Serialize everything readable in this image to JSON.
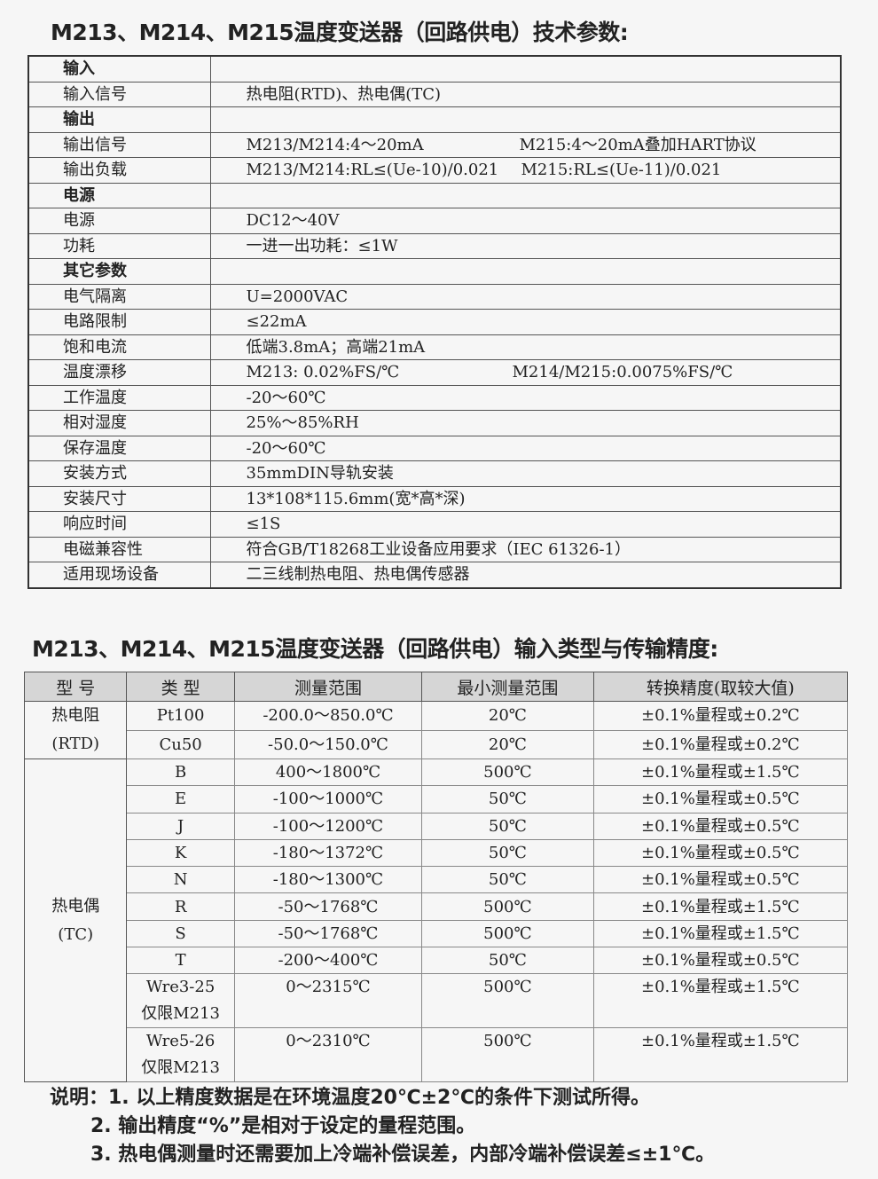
{
  "spec": {
    "title": "M213、M214、M215温度变送器（回路供电）技术参数:",
    "rows": [
      {
        "k": "输入",
        "bold": true,
        "v": "",
        "v2": ""
      },
      {
        "k": "输入信号",
        "v": "热电阻(RTD)、热电偶(TC)",
        "v2": ""
      },
      {
        "k": "输出",
        "bold": true,
        "v": "",
        "v2": ""
      },
      {
        "k": "输出信号",
        "v": "M213/M214:4～20mA",
        "v2": "M215:4～20mA叠加HART协议"
      },
      {
        "k": "输出负载",
        "v": "M213/M214:RL≤(Ue-10)/0.021",
        "v2": "M215:RL≤(Ue-11)/0.021"
      },
      {
        "k": "电源",
        "bold": true,
        "v": "",
        "v2": ""
      },
      {
        "k": "电源",
        "v": "DC12～40V",
        "v2": ""
      },
      {
        "k": "功耗",
        "v": "一进一出功耗：≤1W",
        "v2": ""
      },
      {
        "k": "其它参数",
        "bold": true,
        "v": "",
        "v2": ""
      },
      {
        "k": "电气隔离",
        "v": "U=2000VAC",
        "v2": ""
      },
      {
        "k": "电路限制",
        "v": "≤22mA",
        "v2": ""
      },
      {
        "k": "饱和电流",
        "v": "低端3.8mA；高端21mA",
        "v2": ""
      },
      {
        "k": "温度漂移",
        "v": "M213: 0.02%FS/℃",
        "v2": "M214/M215:0.0075%FS/℃"
      },
      {
        "k": "工作温度",
        "v": "-20～60℃",
        "v2": ""
      },
      {
        "k": "相对湿度",
        "v": "25%～85%RH",
        "v2": ""
      },
      {
        "k": "保存温度",
        "v": "-20～60℃",
        "v2": ""
      },
      {
        "k": "安装方式",
        "v": "35mmDIN导轨安装",
        "v2": ""
      },
      {
        "k": "安装尺寸",
        "v": "13*108*115.6mm(宽*高*深)",
        "v2": ""
      },
      {
        "k": "响应时间",
        "v": "≤1S",
        "v2": ""
      },
      {
        "k": "电磁兼容性",
        "v": "符合GB/T18268工业设备应用要求（IEC 61326-1）",
        "v2": ""
      },
      {
        "k": "适用现场设备",
        "v": "二三线制热电阻、热电偶传感器",
        "v2": ""
      }
    ]
  },
  "accuracy": {
    "title": "M213、M214、M215温度变送器（回路供电）输入类型与传输精度:",
    "headers": [
      "型 号",
      "类 型",
      "测量范围",
      "最小测量范围",
      "转换精度(取较大值)"
    ],
    "groups": [
      {
        "model": "热电阻\n(RTD)",
        "rows": [
          [
            "Pt100",
            "-200.0～850.0℃",
            "20℃",
            "±0.1%量程或±0.2℃"
          ],
          [
            "Cu50",
            "-50.0～150.0℃",
            "20℃",
            "±0.1%量程或±0.2℃"
          ]
        ]
      },
      {
        "model": "热电偶\n(TC)",
        "rows": [
          [
            "B",
            "400～1800℃",
            "500℃",
            "±0.1%量程或±1.5℃"
          ],
          [
            "E",
            "-100～1000℃",
            "50℃",
            "±0.1%量程或±0.5℃"
          ],
          [
            "J",
            "-100～1200℃",
            "50℃",
            "±0.1%量程或±0.5℃"
          ],
          [
            "K",
            "-180～1372℃",
            "50℃",
            "±0.1%量程或±0.5℃"
          ],
          [
            "N",
            "-180～1300℃",
            "50℃",
            "±0.1%量程或±0.5℃"
          ],
          [
            "R",
            "-50～1768℃",
            "500℃",
            "±0.1%量程或±1.5℃"
          ],
          [
            "S",
            "-50～1768℃",
            "500℃",
            "±0.1%量程或±1.5℃"
          ],
          [
            "T",
            "-200～400℃",
            "50℃",
            "±0.1%量程或±0.5℃"
          ],
          [
            "Wre3-25\n仅限M213",
            "0～2315℃",
            "500℃",
            "±0.1%量程或±1.5℃"
          ],
          [
            "Wre5-26\n仅限M213",
            "0～2310℃",
            "500℃",
            "±0.1%量程或±1.5℃"
          ]
        ]
      }
    ]
  },
  "notes": [
    "说明：1. 以上精度数据是在环境温度20℃±2℃的条件下测试所得。",
    "      2. 输出精度“%”是相对于设定的量程范围。",
    "      3. 热电偶测量时还需要加上冷端补偿误差，内部冷端补偿误差≤±1℃。"
  ]
}
